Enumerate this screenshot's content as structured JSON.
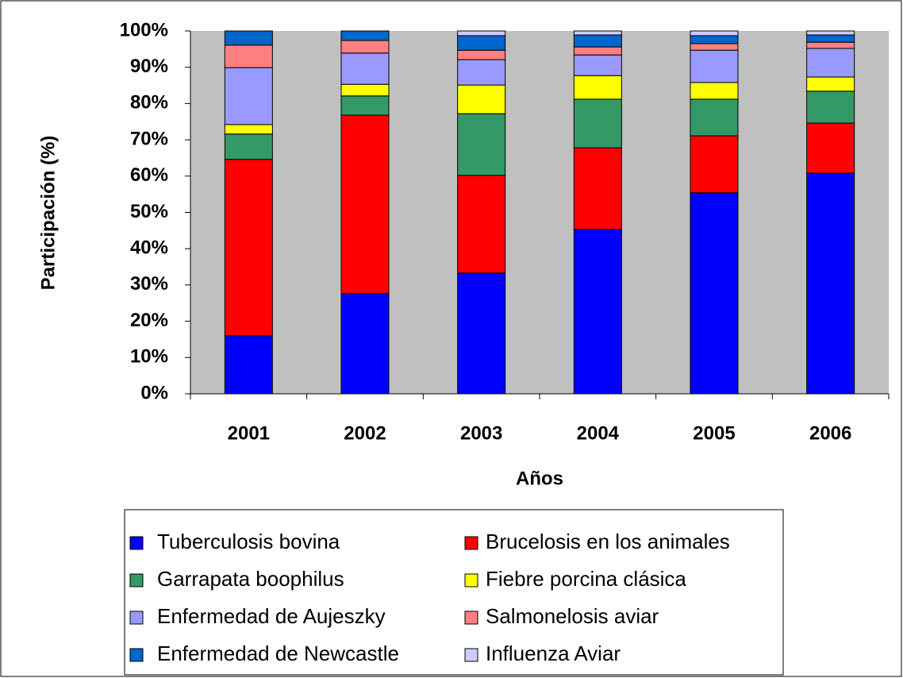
{
  "chart_data": {
    "type": "stacked_bar",
    "x_label": "Años",
    "y_label": "Participación (%)",
    "categories": [
      "2001",
      "2002",
      "2003",
      "2004",
      "2005",
      "2006"
    ],
    "series": [
      {
        "name": "Tuberculosis bovina",
        "color": "#0000ff",
        "values": [
          16.0,
          27.6,
          33.3,
          45.3,
          55.4,
          60.8
        ]
      },
      {
        "name": "Brucelosis en los animales",
        "color": "#ff0000",
        "values": [
          48.6,
          49.2,
          26.9,
          22.5,
          15.7,
          13.8
        ]
      },
      {
        "name": "Garrapata boophilus",
        "color": "#339966",
        "values": [
          7.0,
          5.3,
          17.0,
          13.4,
          10.1,
          8.8
        ]
      },
      {
        "name": "Fiebre porcina clásica",
        "color": "#ffff00",
        "values": [
          2.6,
          3.2,
          7.9,
          6.5,
          4.6,
          3.9
        ]
      },
      {
        "name": "Enfermedad de Aujeszky",
        "color": "#9999ff",
        "values": [
          15.7,
          8.6,
          7.0,
          5.7,
          8.9,
          7.9
        ]
      },
      {
        "name": "Salmonelosis aviar",
        "color": "#ff8080",
        "values": [
          6.2,
          3.5,
          2.6,
          2.2,
          1.8,
          1.7
        ]
      },
      {
        "name": "Enfermedad de Newcastle",
        "color": "#0066cc",
        "values": [
          3.9,
          2.6,
          4.0,
          3.3,
          2.2,
          2.0
        ]
      },
      {
        "name": "Influenza Aviar",
        "color": "#ccccff",
        "values": [
          0,
          0,
          1.3,
          1.1,
          1.3,
          1.1
        ]
      }
    ],
    "ylim": [
      0,
      100
    ],
    "yticks": [
      {
        "value": 0,
        "label": "0%"
      },
      {
        "value": 10,
        "label": "10%"
      },
      {
        "value": 20,
        "label": "20%"
      },
      {
        "value": 30,
        "label": "30%"
      },
      {
        "value": 40,
        "label": "40%"
      },
      {
        "value": 50,
        "label": "50%"
      },
      {
        "value": 60,
        "label": "60%"
      },
      {
        "value": 70,
        "label": "70%"
      },
      {
        "value": 80,
        "label": "80%"
      },
      {
        "value": 90,
        "label": "90%"
      },
      {
        "value": 100,
        "label": "100%"
      }
    ],
    "plot_background": "#c0c0c0"
  }
}
